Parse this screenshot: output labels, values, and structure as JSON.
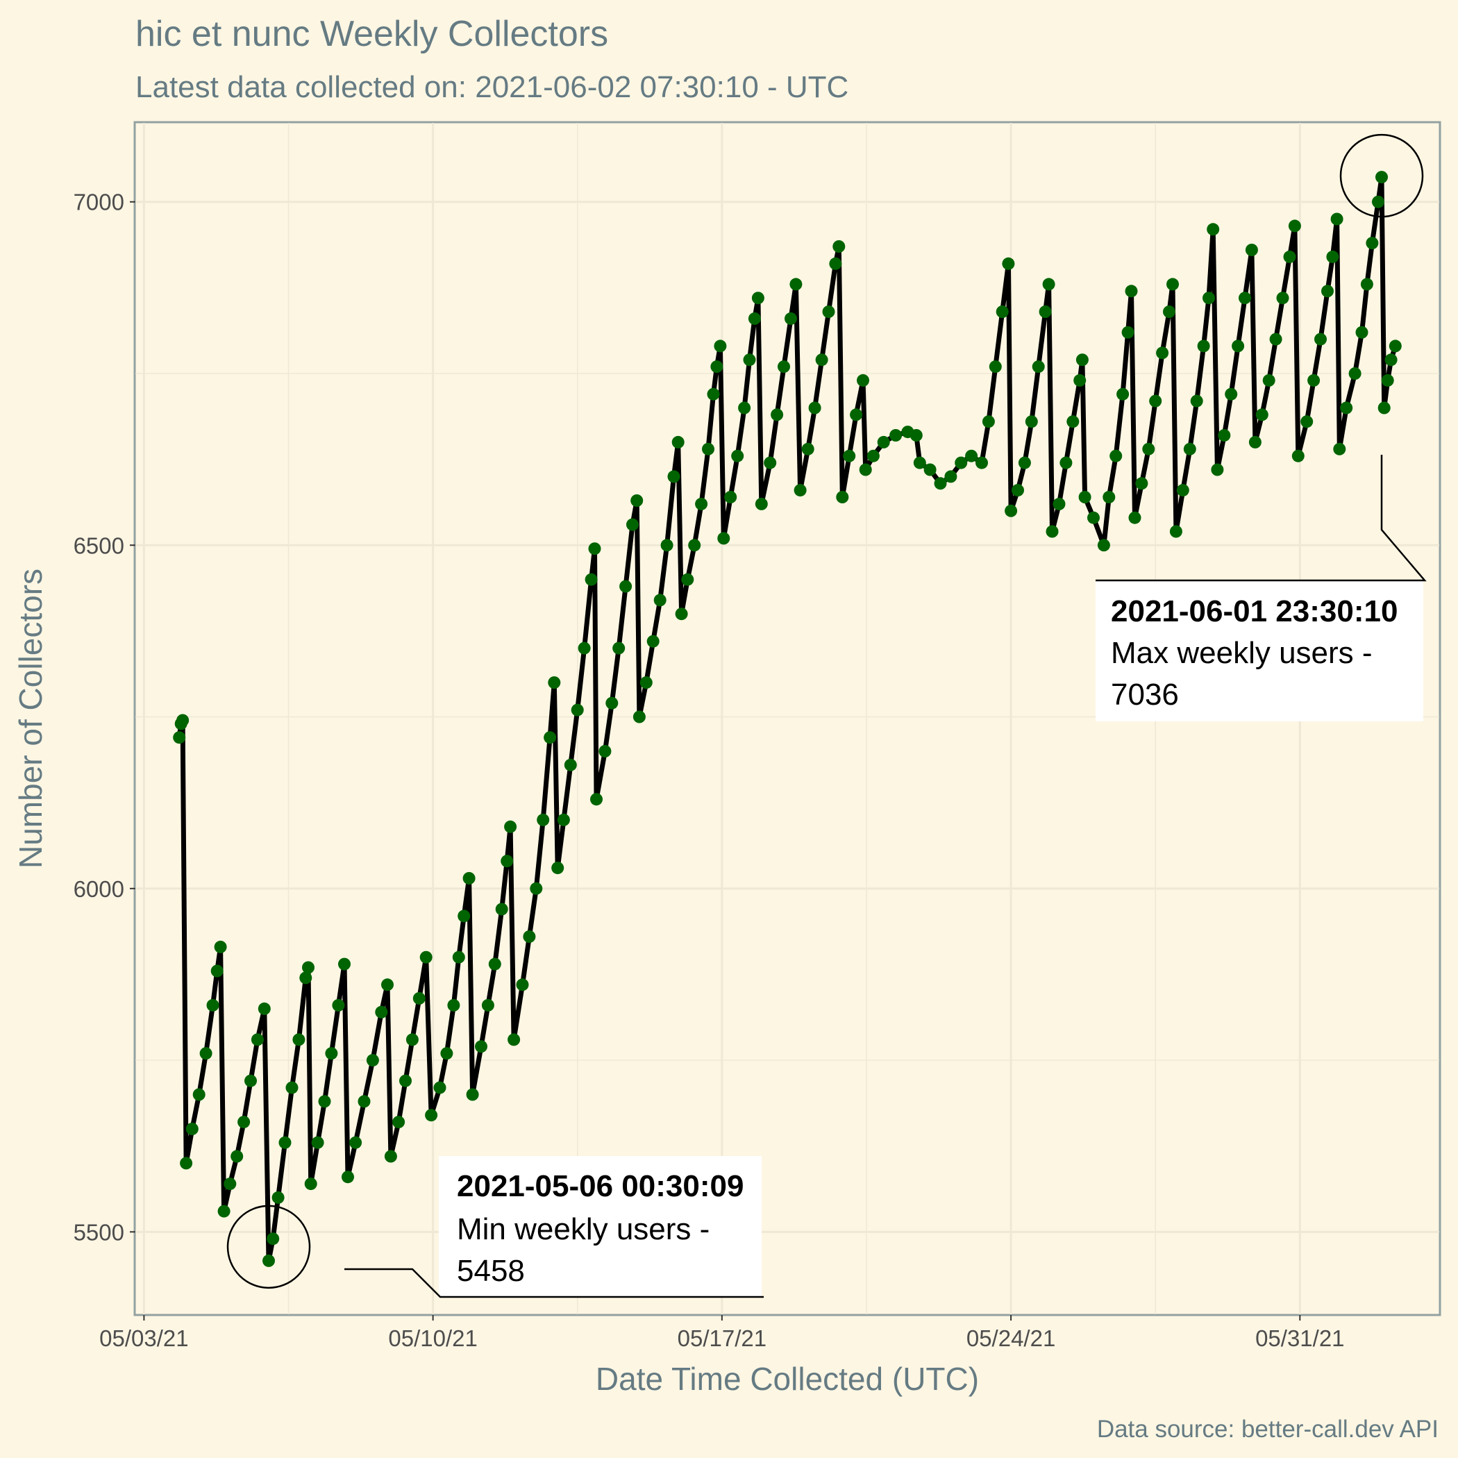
{
  "chart_data": {
    "type": "line",
    "title": "hic et nunc Weekly Collectors",
    "subtitle": "Latest data collected on: 2021-06-02 07:30:10  - UTC",
    "xlabel": "Date Time Collected (UTC)",
    "ylabel": "Number of Collectors",
    "caption": "Data source: better-call.dev API",
    "xlim": [
      "2021-05-02T19:00:00",
      "2021-06-03T09:00:00"
    ],
    "ylim": [
      5380,
      7115
    ],
    "x_ticks": [
      {
        "date": "2021-05-03",
        "label": "05/03/21"
      },
      {
        "date": "2021-05-10",
        "label": "05/10/21"
      },
      {
        "date": "2021-05-17",
        "label": "05/17/21"
      },
      {
        "date": "2021-05-24",
        "label": "05/24/21"
      },
      {
        "date": "2021-05-31",
        "label": "05/31/21"
      }
    ],
    "y_ticks": [
      5500,
      6000,
      6500,
      7000
    ],
    "grid": true,
    "line_color": "#000000",
    "point_color": "#006400",
    "series": [
      {
        "points": [
          [
            "2021-05-03T20:30:00",
            6220
          ],
          [
            "2021-05-03T21:30:00",
            6240
          ],
          [
            "2021-05-03T22:30:00",
            6245
          ],
          [
            "2021-05-04T00:30:00",
            5600
          ],
          [
            "2021-05-04T04:00:00",
            5650
          ],
          [
            "2021-05-04T08:00:00",
            5700
          ],
          [
            "2021-05-04T12:00:00",
            5760
          ],
          [
            "2021-05-04T16:00:00",
            5830
          ],
          [
            "2021-05-04T18:30:00",
            5880
          ],
          [
            "2021-05-04T20:30:00",
            5915
          ],
          [
            "2021-05-04T22:30:00",
            5530
          ],
          [
            "2021-05-05T02:00:00",
            5570
          ],
          [
            "2021-05-05T06:00:00",
            5610
          ],
          [
            "2021-05-05T10:00:00",
            5660
          ],
          [
            "2021-05-05T14:00:00",
            5720
          ],
          [
            "2021-05-05T18:00:00",
            5780
          ],
          [
            "2021-05-05T22:00:00",
            5825
          ],
          [
            "2021-05-06T00:30:09",
            5458
          ],
          [
            "2021-05-06T03:00:00",
            5490
          ],
          [
            "2021-05-06T06:00:00",
            5550
          ],
          [
            "2021-05-06T10:00:00",
            5630
          ],
          [
            "2021-05-06T14:00:00",
            5710
          ],
          [
            "2021-05-06T18:00:00",
            5780
          ],
          [
            "2021-05-06T22:00:00",
            5870
          ],
          [
            "2021-05-06T23:30:00",
            5885
          ],
          [
            "2021-05-07T01:00:00",
            5570
          ],
          [
            "2021-05-07T05:00:00",
            5630
          ],
          [
            "2021-05-07T09:00:00",
            5690
          ],
          [
            "2021-05-07T13:00:00",
            5760
          ],
          [
            "2021-05-07T17:00:00",
            5830
          ],
          [
            "2021-05-07T20:30:00",
            5890
          ],
          [
            "2021-05-07T22:30:00",
            5580
          ],
          [
            "2021-05-08T03:00:00",
            5630
          ],
          [
            "2021-05-08T08:00:00",
            5690
          ],
          [
            "2021-05-08T13:00:00",
            5750
          ],
          [
            "2021-05-08T18:00:00",
            5820
          ],
          [
            "2021-05-08T21:30:00",
            5860
          ],
          [
            "2021-05-08T23:30:00",
            5610
          ],
          [
            "2021-05-09T04:00:00",
            5660
          ],
          [
            "2021-05-09T08:00:00",
            5720
          ],
          [
            "2021-05-09T12:00:00",
            5780
          ],
          [
            "2021-05-09T16:00:00",
            5840
          ],
          [
            "2021-05-09T20:00:00",
            5900
          ],
          [
            "2021-05-09T23:00:00",
            5670
          ],
          [
            "2021-05-10T04:00:00",
            5710
          ],
          [
            "2021-05-10T08:00:00",
            5760
          ],
          [
            "2021-05-10T12:00:00",
            5830
          ],
          [
            "2021-05-10T15:00:00",
            5900
          ],
          [
            "2021-05-10T18:00:00",
            5960
          ],
          [
            "2021-05-10T21:00:00",
            6015
          ],
          [
            "2021-05-10T23:00:00",
            5700
          ],
          [
            "2021-05-11T04:00:00",
            5770
          ],
          [
            "2021-05-11T08:00:00",
            5830
          ],
          [
            "2021-05-11T12:00:00",
            5890
          ],
          [
            "2021-05-11T16:00:00",
            5970
          ],
          [
            "2021-05-11T19:00:00",
            6040
          ],
          [
            "2021-05-11T21:00:00",
            6090
          ],
          [
            "2021-05-11T23:00:00",
            5780
          ],
          [
            "2021-05-12T04:00:00",
            5860
          ],
          [
            "2021-05-12T08:00:00",
            5930
          ],
          [
            "2021-05-12T12:00:00",
            6000
          ],
          [
            "2021-05-12T16:00:00",
            6100
          ],
          [
            "2021-05-12T20:00:00",
            6220
          ],
          [
            "2021-05-12T22:30:00",
            6300
          ],
          [
            "2021-05-13T00:30:00",
            6030
          ],
          [
            "2021-05-13T04:00:00",
            6100
          ],
          [
            "2021-05-13T08:00:00",
            6180
          ],
          [
            "2021-05-13T12:00:00",
            6260
          ],
          [
            "2021-05-13T16:00:00",
            6350
          ],
          [
            "2021-05-13T20:00:00",
            6450
          ],
          [
            "2021-05-13T22:00:00",
            6495
          ],
          [
            "2021-05-13T23:00:00",
            6130
          ],
          [
            "2021-05-14T04:00:00",
            6200
          ],
          [
            "2021-05-14T08:00:00",
            6270
          ],
          [
            "2021-05-14T12:00:00",
            6350
          ],
          [
            "2021-05-14T16:00:00",
            6440
          ],
          [
            "2021-05-14T20:00:00",
            6530
          ],
          [
            "2021-05-14T22:30:00",
            6565
          ],
          [
            "2021-05-15T00:00:00",
            6250
          ],
          [
            "2021-05-15T04:00:00",
            6300
          ],
          [
            "2021-05-15T08:00:00",
            6360
          ],
          [
            "2021-05-15T12:00:00",
            6420
          ],
          [
            "2021-05-15T16:00:00",
            6500
          ],
          [
            "2021-05-15T20:00:00",
            6600
          ],
          [
            "2021-05-15T22:30:00",
            6650
          ],
          [
            "2021-05-16T00:30:00",
            6400
          ],
          [
            "2021-05-16T04:00:00",
            6450
          ],
          [
            "2021-05-16T08:00:00",
            6500
          ],
          [
            "2021-05-16T12:00:00",
            6560
          ],
          [
            "2021-05-16T16:00:00",
            6640
          ],
          [
            "2021-05-16T19:00:00",
            6720
          ],
          [
            "2021-05-16T21:00:00",
            6760
          ],
          [
            "2021-05-16T23:00:00",
            6790
          ],
          [
            "2021-05-17T01:00:00",
            6510
          ],
          [
            "2021-05-17T05:00:00",
            6570
          ],
          [
            "2021-05-17T09:00:00",
            6630
          ],
          [
            "2021-05-17T13:00:00",
            6700
          ],
          [
            "2021-05-17T16:00:00",
            6770
          ],
          [
            "2021-05-17T19:00:00",
            6830
          ],
          [
            "2021-05-17T21:00:00",
            6860
          ],
          [
            "2021-05-17T23:00:00",
            6560
          ],
          [
            "2021-05-18T04:00:00",
            6620
          ],
          [
            "2021-05-18T08:00:00",
            6690
          ],
          [
            "2021-05-18T12:00:00",
            6760
          ],
          [
            "2021-05-18T16:00:00",
            6830
          ],
          [
            "2021-05-18T19:00:00",
            6880
          ],
          [
            "2021-05-18T21:30:00",
            6580
          ],
          [
            "2021-05-19T02:00:00",
            6640
          ],
          [
            "2021-05-19T06:00:00",
            6700
          ],
          [
            "2021-05-19T10:00:00",
            6770
          ],
          [
            "2021-05-19T14:00:00",
            6840
          ],
          [
            "2021-05-19T18:00:00",
            6910
          ],
          [
            "2021-05-19T20:00:00",
            6935
          ],
          [
            "2021-05-19T22:00:00",
            6570
          ],
          [
            "2021-05-20T02:00:00",
            6630
          ],
          [
            "2021-05-20T06:00:00",
            6690
          ],
          [
            "2021-05-20T10:00:00",
            6740
          ],
          [
            "2021-05-20T11:30:00",
            6610
          ],
          [
            "2021-05-20T16:00:00",
            6630
          ],
          [
            "2021-05-20T22:00:00",
            6650
          ],
          [
            "2021-05-21T05:00:00",
            6660
          ],
          [
            "2021-05-21T12:00:00",
            6665
          ],
          [
            "2021-05-21T17:00:00",
            6660
          ],
          [
            "2021-05-21T19:00:00",
            6620
          ],
          [
            "2021-05-22T01:00:00",
            6610
          ],
          [
            "2021-05-22T07:00:00",
            6590
          ],
          [
            "2021-05-22T13:00:00",
            6600
          ],
          [
            "2021-05-22T19:00:00",
            6620
          ],
          [
            "2021-05-23T01:00:00",
            6630
          ],
          [
            "2021-05-23T07:00:00",
            6620
          ],
          [
            "2021-05-23T11:00:00",
            6680
          ],
          [
            "2021-05-23T15:00:00",
            6760
          ],
          [
            "2021-05-23T19:00:00",
            6840
          ],
          [
            "2021-05-23T22:30:00",
            6910
          ],
          [
            "2021-05-24T00:00:00",
            6550
          ],
          [
            "2021-05-24T04:00:00",
            6580
          ],
          [
            "2021-05-24T08:00:00",
            6620
          ],
          [
            "2021-05-24T12:00:00",
            6680
          ],
          [
            "2021-05-24T16:00:00",
            6760
          ],
          [
            "2021-05-24T20:00:00",
            6840
          ],
          [
            "2021-05-24T22:00:00",
            6880
          ],
          [
            "2021-05-25T00:00:00",
            6520
          ],
          [
            "2021-05-25T04:00:00",
            6560
          ],
          [
            "2021-05-25T08:00:00",
            6620
          ],
          [
            "2021-05-25T12:00:00",
            6680
          ],
          [
            "2021-05-25T16:00:00",
            6740
          ],
          [
            "2021-05-25T17:30:00",
            6770
          ],
          [
            "2021-05-25T19:00:00",
            6570
          ],
          [
            "2021-05-26T00:00:00",
            6540
          ],
          [
            "2021-05-26T06:00:00",
            6500
          ],
          [
            "2021-05-26T09:00:00",
            6570
          ],
          [
            "2021-05-26T13:00:00",
            6630
          ],
          [
            "2021-05-26T17:00:00",
            6720
          ],
          [
            "2021-05-26T20:00:00",
            6810
          ],
          [
            "2021-05-26T22:00:00",
            6870
          ],
          [
            "2021-05-27T00:00:00",
            6540
          ],
          [
            "2021-05-27T04:00:00",
            6590
          ],
          [
            "2021-05-27T08:00:00",
            6640
          ],
          [
            "2021-05-27T12:00:00",
            6710
          ],
          [
            "2021-05-27T16:00:00",
            6780
          ],
          [
            "2021-05-27T20:00:00",
            6840
          ],
          [
            "2021-05-27T22:00:00",
            6880
          ],
          [
            "2021-05-28T00:00:00",
            6520
          ],
          [
            "2021-05-28T04:00:00",
            6580
          ],
          [
            "2021-05-28T08:00:00",
            6640
          ],
          [
            "2021-05-28T12:00:00",
            6710
          ],
          [
            "2021-05-28T16:00:00",
            6790
          ],
          [
            "2021-05-28T19:00:00",
            6860
          ],
          [
            "2021-05-28T21:30:00",
            6960
          ],
          [
            "2021-05-29T00:00:00",
            6610
          ],
          [
            "2021-05-29T04:00:00",
            6660
          ],
          [
            "2021-05-29T08:00:00",
            6720
          ],
          [
            "2021-05-29T12:00:00",
            6790
          ],
          [
            "2021-05-29T16:00:00",
            6860
          ],
          [
            "2021-05-29T20:00:00",
            6930
          ],
          [
            "2021-05-29T22:00:00",
            6650
          ],
          [
            "2021-05-30T02:00:00",
            6690
          ],
          [
            "2021-05-30T06:00:00",
            6740
          ],
          [
            "2021-05-30T10:00:00",
            6800
          ],
          [
            "2021-05-30T14:00:00",
            6860
          ],
          [
            "2021-05-30T18:00:00",
            6920
          ],
          [
            "2021-05-30T21:00:00",
            6965
          ],
          [
            "2021-05-30T23:00:00",
            6630
          ],
          [
            "2021-05-31T04:00:00",
            6680
          ],
          [
            "2021-05-31T08:00:00",
            6740
          ],
          [
            "2021-05-31T12:00:00",
            6800
          ],
          [
            "2021-05-31T16:00:00",
            6870
          ],
          [
            "2021-05-31T19:00:00",
            6920
          ],
          [
            "2021-05-31T21:30:00",
            6975
          ],
          [
            "2021-05-31T23:00:00",
            6640
          ],
          [
            "2021-06-01T03:00:00",
            6700
          ],
          [
            "2021-06-01T08:00:00",
            6750
          ],
          [
            "2021-06-01T12:00:00",
            6810
          ],
          [
            "2021-06-01T15:00:00",
            6880
          ],
          [
            "2021-06-01T18:00:00",
            6940
          ],
          [
            "2021-06-01T21:30:00",
            7000
          ],
          [
            "2021-06-01T23:30:10",
            7036
          ],
          [
            "2021-06-02T01:00:00",
            6700
          ],
          [
            "2021-06-02T03:00:00",
            6740
          ],
          [
            "2021-06-02T05:00:00",
            6770
          ],
          [
            "2021-06-02T07:30:10",
            6790
          ]
        ]
      }
    ],
    "annotations": [
      {
        "kind": "min",
        "timestamp": "2021-05-06 00:30:09",
        "label": "Min weekly users -",
        "value": 5458
      },
      {
        "kind": "max",
        "timestamp": "2021-06-01 23:30:10",
        "label": "Max weekly users -",
        "value": 7036
      }
    ]
  }
}
